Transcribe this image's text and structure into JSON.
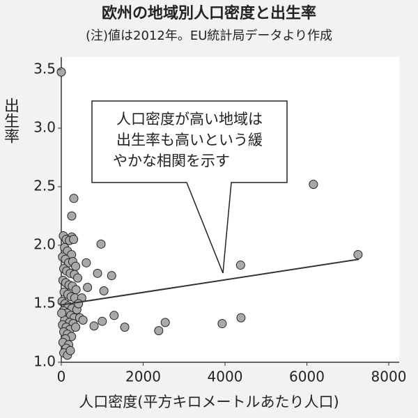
{
  "chart_data": {
    "type": "scatter",
    "title": "欧州の地域別人口密度と出生率",
    "subtitle": "(注)値は2012年。EU統計局データより作成",
    "ylabel": "出生率",
    "xlabel": "人口密度(平方キロメートルあたり人口)",
    "annotation": [
      "人口密度が高い地域は",
      "出生率も高いという緩",
      "やかな相関を示す"
    ],
    "xlim": [
      0,
      8000
    ],
    "xticks": [
      0,
      2000,
      4000,
      6000,
      8000
    ],
    "ylim": [
      1,
      3.5
    ],
    "yticks": [
      {
        "value": 1,
        "label": "1.0"
      },
      1.5,
      {
        "value": 2,
        "label": "2.0"
      },
      2.5,
      {
        "value": 3,
        "label": "3.0"
      },
      3.5
    ],
    "color": "#a9a9a9",
    "x": [
      0,
      6160,
      7250,
      4380,
      4390,
      3930,
      2540,
      2380,
      1550,
      1290,
      1230,
      970,
      1040,
      885,
      610,
      640,
      800,
      1000,
      306,
      255,
      255,
      50,
      120,
      200,
      300,
      80,
      150,
      250,
      30,
      100,
      180,
      280,
      350,
      60,
      130,
      220,
      320,
      400,
      40,
      110,
      190,
      270,
      360,
      70,
      160,
      240,
      330,
      20,
      90,
      170,
      260,
      380,
      50,
      140,
      230,
      310,
      450,
      80,
      200,
      290,
      530,
      30,
      120,
      210,
      350,
      60,
      150,
      250,
      100,
      40,
      180,
      120,
      60,
      150,
      220,
      10,
      500,
      420
    ],
    "values": [
      3.48,
      2.52,
      1.92,
      1.83,
      1.38,
      1.33,
      1.34,
      1.27,
      1.3,
      1.4,
      1.74,
      2.01,
      1.61,
      1.76,
      1.85,
      1.64,
      1.31,
      1.35,
      2.4,
      2.25,
      2.07,
      2.08,
      2.05,
      2.04,
      2.05,
      1.98,
      1.95,
      1.92,
      1.9,
      1.88,
      1.85,
      1.86,
      1.82,
      1.8,
      1.78,
      1.76,
      1.75,
      1.72,
      1.7,
      1.68,
      1.66,
      1.65,
      1.62,
      1.6,
      1.58,
      1.56,
      1.55,
      1.52,
      1.5,
      1.48,
      1.46,
      1.45,
      1.44,
      1.42,
      1.4,
      1.38,
      1.38,
      1.36,
      1.34,
      1.33,
      1.36,
      1.32,
      1.3,
      1.28,
      1.3,
      1.26,
      1.24,
      1.22,
      1.2,
      1.17,
      1.15,
      1.12,
      1.08,
      1.06,
      1.1,
      1.42,
      1.55,
      1.5
    ],
    "trend": {
      "x": [
        0,
        7270
      ],
      "values": [
        1.49,
        1.88
      ]
    },
    "grid": false
  }
}
